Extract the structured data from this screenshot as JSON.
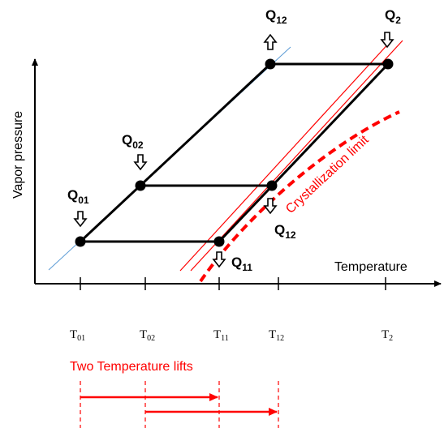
{
  "axes": {
    "y_label": "Vapor pressure",
    "x_label": "Temperature"
  },
  "heat_labels": [
    {
      "id": "Q01",
      "main": "Q",
      "sub": "01"
    },
    {
      "id": "Q02",
      "main": "Q",
      "sub": "02"
    },
    {
      "id": "Q12_top",
      "main": "Q",
      "sub": "12"
    },
    {
      "id": "Q2",
      "main": "Q",
      "sub": "2"
    },
    {
      "id": "Q12_mid",
      "main": "Q",
      "sub": "12"
    },
    {
      "id": "Q11",
      "main": "Q",
      "sub": "11"
    }
  ],
  "temperature_ticks": [
    {
      "main": "T",
      "sub": "01"
    },
    {
      "main": "T",
      "sub": "02"
    },
    {
      "main": "T",
      "sub": "11"
    },
    {
      "main": "T",
      "sub": "12"
    },
    {
      "main": "T",
      "sub": "2"
    }
  ],
  "crystallization_label": "Crystallization limit",
  "lifts_label": "Two Temperature lifts",
  "colors": {
    "cycle_line": "#000000",
    "equilibrium_line": "#5b9bd5",
    "limit_line": "#ff0000",
    "lift_arrow": "#ff0000"
  }
}
